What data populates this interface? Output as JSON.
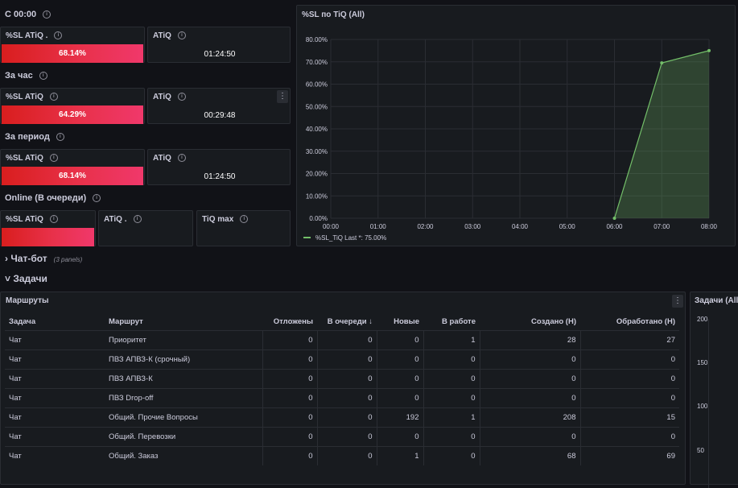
{
  "sections": {
    "since_midnight": "С 00:00",
    "per_hour": "За час",
    "per_period": "За период",
    "online": "Online (В очереди)",
    "chatbot": "Чат-бот",
    "chatbot_sub": "(3 panels)",
    "tasks": "Задачи"
  },
  "stat_panels": {
    "midnight": {
      "sl_title": "%SL ATiQ .",
      "sl_value": "68.14%",
      "sl_fraction": 0.6814,
      "atiq_title": "ATiQ",
      "atiq_value": "01:24:50"
    },
    "hour": {
      "sl_title": "%SL ATiQ",
      "sl_value": "64.29%",
      "sl_fraction": 0.6429,
      "atiq_title": "ATiQ",
      "atiq_value": "00:29:48"
    },
    "period": {
      "sl_title": "%SL ATiQ",
      "sl_value": "68.14%",
      "sl_fraction": 0.6814,
      "atiq_title": "ATiQ",
      "atiq_value": "01:24:50"
    },
    "online": {
      "sl_title": "%SL ATiQ",
      "atiq_title": "ATiQ .",
      "tiqmax_title": "TiQ max"
    }
  },
  "menu_icon": "⋮",
  "chart_panel_title": "%SL по TiQ (All)",
  "chart_data": {
    "type": "area",
    "x": [
      "00:00",
      "01:00",
      "02:00",
      "03:00",
      "04:00",
      "05:00",
      "06:00",
      "07:00",
      "08:00"
    ],
    "y_ticks": [
      "0.00%",
      "10.00%",
      "20.00%",
      "30.00%",
      "40.00%",
      "50.00%",
      "60.00%",
      "70.00%",
      "80.00%"
    ],
    "ylim": [
      0,
      80
    ],
    "series": [
      {
        "name": "%SL_TiQ",
        "points": [
          {
            "x": "06:00",
            "y": 0
          },
          {
            "x": "07:00",
            "y": 69.5
          },
          {
            "x": "08:00",
            "y": 75
          }
        ],
        "color": "#73bf69"
      }
    ],
    "legend": {
      "name": "%SL_TiQ",
      "last_label": "Last *: 75.00%"
    },
    "legend_position": "bottom-left",
    "grid": true
  },
  "routes": {
    "title": "Маршруты",
    "columns": [
      "Задача",
      "Маршрут",
      "Отложены",
      "В очереди ↓",
      "Новые",
      "В работе",
      "Создано (Н)",
      "Обработано (Н)"
    ],
    "rows": [
      [
        "Чат",
        "Приоритет",
        "0",
        "0",
        "0",
        "1",
        "28",
        "27"
      ],
      [
        "Чат",
        "ПВЗ АПВЗ-К (срочный)",
        "0",
        "0",
        "0",
        "0",
        "0",
        "0"
      ],
      [
        "Чат",
        "ПВЗ АПВЗ-К",
        "0",
        "0",
        "0",
        "0",
        "0",
        "0"
      ],
      [
        "Чат",
        "ПВЗ Drop-off",
        "0",
        "0",
        "0",
        "0",
        "0",
        "0"
      ],
      [
        "Чат",
        "Общий. Прочие Вопросы",
        "0",
        "0",
        "192",
        "1",
        "208",
        "15"
      ],
      [
        "Чат",
        "Общий. Перевозки",
        "0",
        "0",
        "0",
        "0",
        "0",
        "0"
      ],
      [
        "Чат",
        "Общий. Заказ",
        "0",
        "0",
        "1",
        "0",
        "68",
        "69"
      ]
    ]
  },
  "right_panel": {
    "title": "Задачи (All)",
    "y_ticks": [
      "200",
      "150",
      "100",
      "50"
    ]
  },
  "colors": {
    "background": "#111217",
    "panel": "#181b1f",
    "border": "#2a2d33",
    "bar_start": "#d91e1e",
    "bar_end": "#f0386b",
    "series": "#73bf69"
  }
}
